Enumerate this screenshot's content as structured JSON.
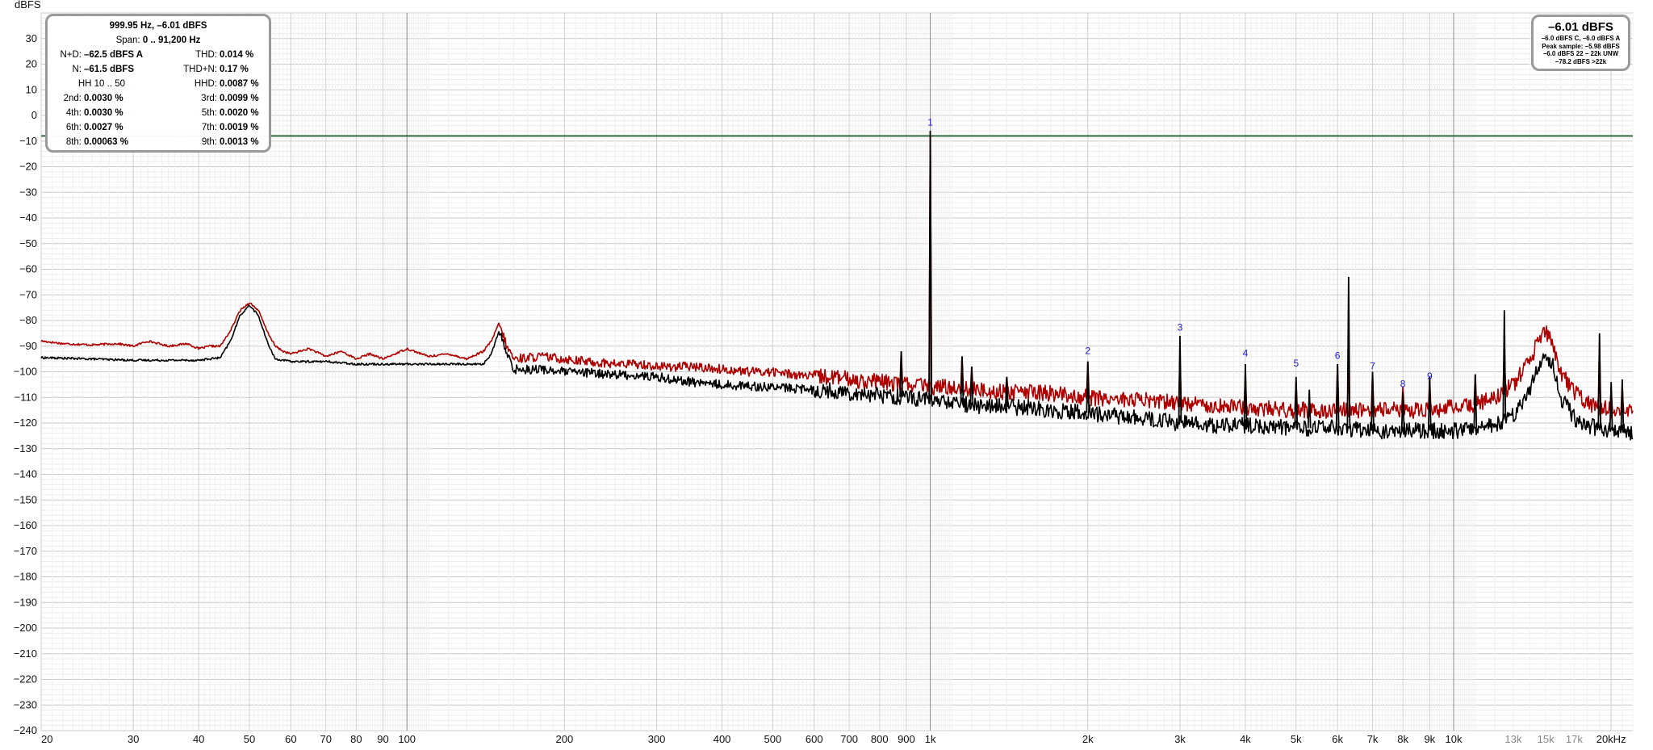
{
  "chart_data": {
    "type": "line",
    "ylabel": "dBFS",
    "xscale": "log",
    "xlim": [
      20,
      22000
    ],
    "ylim": [
      -240,
      40
    ],
    "y_ticks": [
      30,
      20,
      10,
      0,
      -10,
      -20,
      -30,
      -40,
      -50,
      -60,
      -70,
      -80,
      -90,
      -100,
      -110,
      -120,
      -130,
      -140,
      -150,
      -160,
      -170,
      -180,
      -190,
      -200,
      -210,
      -220,
      -230,
      -240
    ],
    "x_ticks": [
      {
        "f": 20,
        "label": "20"
      },
      {
        "f": 30,
        "label": "30"
      },
      {
        "f": 40,
        "label": "40"
      },
      {
        "f": 50,
        "label": "50"
      },
      {
        "f": 60,
        "label": "60"
      },
      {
        "f": 70,
        "label": "70"
      },
      {
        "f": 80,
        "label": "80"
      },
      {
        "f": 90,
        "label": "90"
      },
      {
        "f": 100,
        "label": "100"
      },
      {
        "f": 200,
        "label": "200"
      },
      {
        "f": 300,
        "label": "300"
      },
      {
        "f": 400,
        "label": "400"
      },
      {
        "f": 500,
        "label": "500"
      },
      {
        "f": 600,
        "label": "600"
      },
      {
        "f": 700,
        "label": "700"
      },
      {
        "f": 800,
        "label": "800"
      },
      {
        "f": 900,
        "label": "900"
      },
      {
        "f": 1000,
        "label": "1k"
      },
      {
        "f": 2000,
        "label": "2k"
      },
      {
        "f": 3000,
        "label": "3k"
      },
      {
        "f": 4000,
        "label": "4k"
      },
      {
        "f": 5000,
        "label": "5k"
      },
      {
        "f": 6000,
        "label": "6k"
      },
      {
        "f": 7000,
        "label": "7k"
      },
      {
        "f": 8000,
        "label": "8k"
      },
      {
        "f": 9000,
        "label": "9k"
      },
      {
        "f": 10000,
        "label": "10k"
      },
      {
        "f": 13000,
        "label": "13k",
        "dim": true
      },
      {
        "f": 15000,
        "label": "15k",
        "dim": true
      },
      {
        "f": 17000,
        "label": "17k",
        "dim": true
      },
      {
        "f": 20000,
        "label": "20kHz"
      }
    ],
    "reference_line": {
      "y": -8,
      "color": "#2f6b3f"
    },
    "series": [
      {
        "color": "#b00000",
        "points": [
          [
            20,
            -88
          ],
          [
            22,
            -89
          ],
          [
            25,
            -89.5
          ],
          [
            28,
            -89
          ],
          [
            30,
            -90
          ],
          [
            32,
            -88
          ],
          [
            35,
            -90
          ],
          [
            38,
            -89
          ],
          [
            40,
            -91
          ],
          [
            42,
            -90
          ],
          [
            44,
            -90
          ],
          [
            46,
            -84
          ],
          [
            48,
            -76
          ],
          [
            50,
            -73
          ],
          [
            52,
            -76
          ],
          [
            54,
            -84
          ],
          [
            56,
            -90
          ],
          [
            58,
            -92
          ],
          [
            60,
            -93
          ],
          [
            65,
            -91
          ],
          [
            70,
            -94
          ],
          [
            75,
            -92
          ],
          [
            80,
            -95
          ],
          [
            85,
            -93
          ],
          [
            90,
            -95
          ],
          [
            95,
            -93
          ],
          [
            100,
            -91
          ],
          [
            110,
            -94
          ],
          [
            120,
            -93
          ],
          [
            130,
            -95
          ],
          [
            140,
            -92
          ],
          [
            145,
            -88
          ],
          [
            150,
            -81
          ],
          [
            155,
            -90
          ],
          [
            160,
            -95
          ],
          [
            180,
            -94
          ],
          [
            200,
            -95
          ],
          [
            220,
            -96
          ],
          [
            250,
            -97
          ],
          [
            280,
            -97
          ],
          [
            300,
            -98
          ],
          [
            350,
            -98
          ],
          [
            400,
            -99
          ],
          [
            450,
            -100
          ],
          [
            500,
            -100
          ],
          [
            550,
            -101
          ],
          [
            600,
            -102
          ],
          [
            650,
            -102
          ],
          [
            700,
            -103
          ],
          [
            800,
            -104
          ],
          [
            900,
            -105
          ],
          [
            950,
            -105
          ],
          [
            1000,
            -106
          ],
          [
            1100,
            -106
          ],
          [
            1200,
            -107
          ],
          [
            1400,
            -108
          ],
          [
            1600,
            -108
          ],
          [
            1800,
            -109
          ],
          [
            2000,
            -110
          ],
          [
            2500,
            -111
          ],
          [
            3000,
            -112
          ],
          [
            3500,
            -113
          ],
          [
            4000,
            -114
          ],
          [
            5000,
            -115
          ],
          [
            6000,
            -115
          ],
          [
            7000,
            -115
          ],
          [
            8000,
            -115
          ],
          [
            9000,
            -115
          ],
          [
            10000,
            -114
          ],
          [
            11000,
            -113
          ],
          [
            12000,
            -110
          ],
          [
            13000,
            -105
          ],
          [
            14000,
            -96
          ],
          [
            14500,
            -88
          ],
          [
            15000,
            -84
          ],
          [
            15500,
            -90
          ],
          [
            16000,
            -100
          ],
          [
            17000,
            -108
          ],
          [
            18000,
            -112
          ],
          [
            19000,
            -114
          ],
          [
            20000,
            -115
          ],
          [
            22000,
            -116
          ]
        ],
        "spikes": [
          [
            880,
            -92
          ],
          [
            1000,
            -6
          ],
          [
            1150,
            -94
          ],
          [
            1200,
            -98
          ],
          [
            1400,
            -102
          ],
          [
            2000,
            -96
          ],
          [
            3000,
            -95
          ],
          [
            4000,
            -101
          ],
          [
            5000,
            -104
          ],
          [
            6000,
            -97
          ],
          [
            6300,
            -96
          ],
          [
            7000,
            -101
          ],
          [
            8000,
            -106
          ],
          [
            9000,
            -103
          ],
          [
            11000,
            -101
          ],
          [
            12500,
            -90
          ],
          [
            19000,
            -89
          ],
          [
            20000,
            -107
          ],
          [
            21000,
            -105
          ]
        ]
      },
      {
        "color": "#000000",
        "points": [
          [
            20,
            -94.5
          ],
          [
            25,
            -95
          ],
          [
            30,
            -95.5
          ],
          [
            35,
            -95.5
          ],
          [
            40,
            -95.5
          ],
          [
            44,
            -94.5
          ],
          [
            46,
            -88
          ],
          [
            48,
            -78
          ],
          [
            50,
            -74
          ],
          [
            52,
            -78
          ],
          [
            54,
            -88
          ],
          [
            56,
            -95
          ],
          [
            60,
            -96
          ],
          [
            70,
            -96
          ],
          [
            80,
            -97
          ],
          [
            90,
            -97
          ],
          [
            100,
            -97
          ],
          [
            120,
            -97
          ],
          [
            140,
            -97
          ],
          [
            145,
            -93
          ],
          [
            150,
            -84
          ],
          [
            155,
            -93
          ],
          [
            160,
            -99
          ],
          [
            180,
            -99
          ],
          [
            200,
            -100
          ],
          [
            250,
            -101
          ],
          [
            300,
            -102
          ],
          [
            350,
            -104
          ],
          [
            400,
            -105
          ],
          [
            500,
            -106
          ],
          [
            600,
            -107
          ],
          [
            700,
            -108
          ],
          [
            800,
            -109
          ],
          [
            900,
            -110
          ],
          [
            1000,
            -111
          ],
          [
            1200,
            -113
          ],
          [
            1500,
            -114
          ],
          [
            2000,
            -116
          ],
          [
            2500,
            -118
          ],
          [
            3000,
            -120
          ],
          [
            3500,
            -121
          ],
          [
            4000,
            -121
          ],
          [
            5000,
            -122
          ],
          [
            6000,
            -122
          ],
          [
            7000,
            -123
          ],
          [
            8000,
            -123
          ],
          [
            9000,
            -123
          ],
          [
            10000,
            -123
          ],
          [
            11000,
            -122
          ],
          [
            12000,
            -121
          ],
          [
            13000,
            -117
          ],
          [
            14000,
            -107
          ],
          [
            14500,
            -98
          ],
          [
            15000,
            -93
          ],
          [
            15500,
            -98
          ],
          [
            16000,
            -110
          ],
          [
            17000,
            -118
          ],
          [
            18000,
            -121
          ],
          [
            20000,
            -123
          ],
          [
            22000,
            -124
          ]
        ],
        "spikes": [
          [
            880,
            -92
          ],
          [
            1000,
            -6
          ],
          [
            1150,
            -94
          ],
          [
            1200,
            -98
          ],
          [
            1400,
            -102
          ],
          [
            2000,
            -96
          ],
          [
            3000,
            -86
          ],
          [
            4000,
            -97
          ],
          [
            5000,
            -102
          ],
          [
            5300,
            -107
          ],
          [
            6000,
            -97
          ],
          [
            6300,
            -63
          ],
          [
            7000,
            -100
          ],
          [
            8000,
            -108
          ],
          [
            9000,
            -102
          ],
          [
            11000,
            -101
          ],
          [
            12500,
            -76
          ],
          [
            19000,
            -85
          ],
          [
            20000,
            -104
          ],
          [
            21000,
            -103
          ]
        ]
      }
    ],
    "harmonic_markers": [
      {
        "label": "1",
        "f": 1000,
        "y": -4
      },
      {
        "label": "2",
        "f": 2000,
        "y": -93
      },
      {
        "label": "3",
        "f": 3000,
        "y": -84
      },
      {
        "label": "4",
        "f": 4000,
        "y": -94
      },
      {
        "label": "5",
        "f": 5000,
        "y": -98
      },
      {
        "label": "6",
        "f": 6000,
        "y": -95
      },
      {
        "label": "7",
        "f": 7000,
        "y": -99
      },
      {
        "label": "8",
        "f": 8000,
        "y": -106
      },
      {
        "label": "9",
        "f": 9000,
        "y": -103
      }
    ]
  },
  "stats_panel": {
    "header_main": "999.95 Hz, –6.01 dBFS",
    "span_label": "Span:",
    "span_value": "0 .. 91,200 Hz",
    "nd_label": "N+D:",
    "nd_value": "–62.5 dBFS A",
    "thd_label": "THD:",
    "thd_value": "0.014 %",
    "n_label": "N:",
    "n_value": "–61.5 dBFS",
    "thdn_label": "THD+N:",
    "thdn_value": "0.17 %",
    "hh_label": "HH 10 .. 50",
    "hhd_label": "HHD:",
    "hhd_value": "0.0087 %",
    "h2_label": "2nd:",
    "h2_value": "0.0030 %",
    "h3_label": "3rd:",
    "h3_value": "0.0099 %",
    "h4_label": "4th:",
    "h4_value": "0.0030 %",
    "h5_label": "5th:",
    "h5_value": "0.0020 %",
    "h6_label": "6th:",
    "h6_value": "0.0027 %",
    "h7_label": "7th:",
    "h7_value": "0.0019 %",
    "h8_label": "8th:",
    "h8_value": "0.00063 %",
    "h9_label": "9th:",
    "h9_value": "0.0013 %"
  },
  "level_panel": {
    "main": "–6.01 dBFS",
    "line1": "–6.0 dBFS C, –6.0 dBFS A",
    "line2": "Peak sample: –5.98 dBFS",
    "line3": "–6.0 dBFS 22 – 22k UNW",
    "line4": "–78.2 dBFS >22k"
  }
}
